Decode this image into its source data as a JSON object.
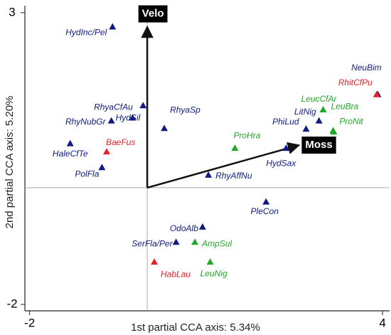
{
  "chart_data": {
    "type": "scatter",
    "x_label": "1st partial CCA axis: 5.34%",
    "y_label": "2nd partial CCA axis: 5.20%",
    "xlim": [
      -2.08,
      4.12
    ],
    "ylim": [
      -2.11,
      3.12
    ],
    "xticks": [
      -2,
      4
    ],
    "yticks": [
      -2,
      3
    ],
    "origin_lines": true,
    "points": [
      {
        "label": "HydInc/Pel",
        "x": -0.59,
        "y": 2.76,
        "color": "#101a80"
      },
      {
        "label": "RhyaCfAu",
        "x": -0.25,
        "y": 1.2,
        "color": "#101a80"
      },
      {
        "label": "RhyNubGr",
        "x": -0.61,
        "y": 1.15,
        "color": "#101a80"
      },
      {
        "label": "HydSil",
        "x": -0.07,
        "y": 1.41,
        "color": "#101a80"
      },
      {
        "label": "RhyaSp",
        "x": 0.29,
        "y": 1.02,
        "color": "#101a80"
      },
      {
        "label": "HaleCfTe",
        "x": -1.31,
        "y": 0.76,
        "color": "#101a80"
      },
      {
        "label": "BaeFus",
        "x": -0.69,
        "y": 0.62,
        "color": "#e8202a"
      },
      {
        "label": "PolFla",
        "x": -0.77,
        "y": 0.35,
        "color": "#101a80"
      },
      {
        "label": "RhyAffNu",
        "x": 1.04,
        "y": 0.22,
        "color": "#101a80"
      },
      {
        "label": "ProHra",
        "x": 1.49,
        "y": 0.68,
        "color": "#22a828"
      },
      {
        "label": "HydSax",
        "x": 2.36,
        "y": 0.68,
        "color": "#101a80"
      },
      {
        "label": "PhiLud",
        "x": 2.7,
        "y": 1.01,
        "color": "#101a80"
      },
      {
        "label": "LitNig",
        "x": 2.92,
        "y": 1.15,
        "color": "#101a80"
      },
      {
        "label": "LeucCfAr",
        "x": 2.99,
        "y": 1.34,
        "color": "#22a828"
      },
      {
        "label": "LeuBra",
        "x": 3.16,
        "y": 0.98,
        "color": "#22a828"
      },
      {
        "label": "ProNit",
        "x": 3.17,
        "y": 0.96,
        "color": "#22a828"
      },
      {
        "label": "NeuBim",
        "x": 3.92,
        "y": 1.6,
        "color": "#101a80"
      },
      {
        "label": "RhitCfPu",
        "x": 3.9,
        "y": 1.6,
        "color": "#e8202a"
      },
      {
        "label": "PleCon",
        "x": 2.02,
        "y": -0.24,
        "color": "#101a80"
      },
      {
        "label": "OdoAlb",
        "x": 0.94,
        "y": -0.67,
        "color": "#101a80"
      },
      {
        "label": "SerFla/Per",
        "x": 0.49,
        "y": -0.93,
        "color": "#101a80"
      },
      {
        "label": "AmpSul",
        "x": 0.81,
        "y": -0.93,
        "color": "#22a828"
      },
      {
        "label": "HabLau",
        "x": 0.12,
        "y": -1.27,
        "color": "#e8202a"
      },
      {
        "label": "LeuNig",
        "x": 1.07,
        "y": -1.27,
        "color": "#22a828"
      }
    ],
    "arrows": [
      {
        "label": "Velo",
        "x": 0,
        "y": 2.76
      },
      {
        "label": "Moss",
        "x": 2.58,
        "y": 0.73
      }
    ]
  }
}
